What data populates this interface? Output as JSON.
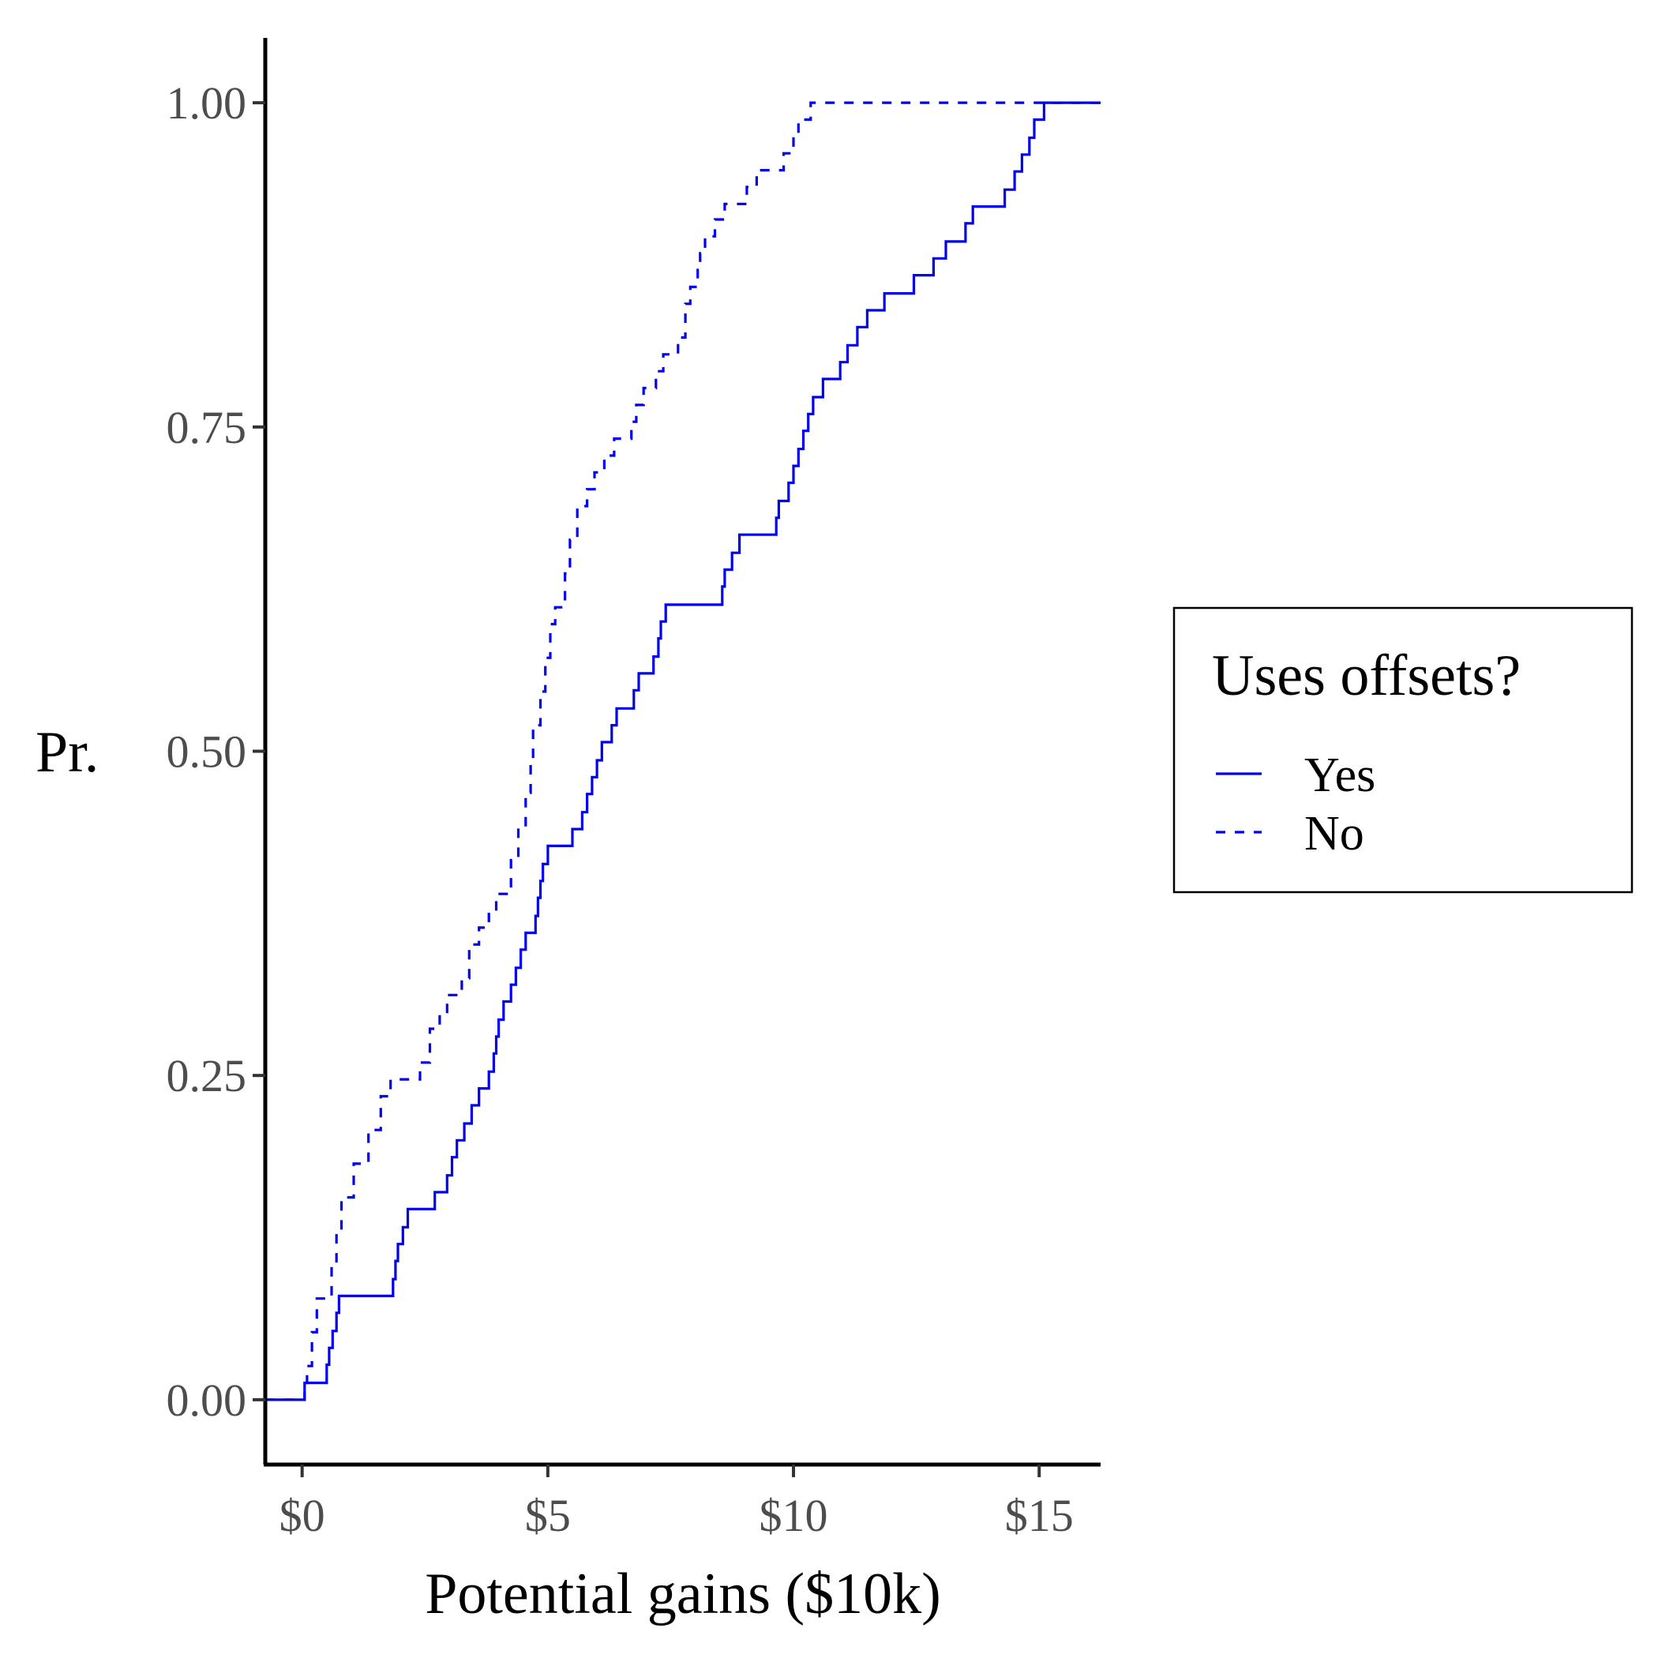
{
  "chart_data": {
    "type": "line",
    "step": true,
    "title": "",
    "xlabel": "Potential gains ($10k)",
    "ylabel": "Pr.",
    "xlim": [
      -0.75,
      16.25
    ],
    "ylim": [
      -0.05,
      1.05
    ],
    "x_ticks": [
      0,
      5,
      10,
      15
    ],
    "x_tick_labels": [
      "$0",
      "$5",
      "$10",
      "$15"
    ],
    "y_ticks": [
      0,
      0.25,
      0.5,
      0.75,
      1.0
    ],
    "y_tick_labels": [
      "0.00",
      "0.25",
      "0.50",
      "0.75",
      "1.00"
    ],
    "grid": false,
    "legend": {
      "title": "Uses offsets?",
      "position": "right"
    },
    "series": [
      {
        "name": "Yes",
        "line_style": "solid",
        "color": "#0000ee",
        "x": [
          -0.75,
          0.05,
          0.5,
          0.55,
          0.62,
          0.7,
          0.75,
          1.85,
          1.9,
          1.95,
          2.05,
          2.15,
          2.7,
          2.95,
          3.05,
          3.15,
          3.3,
          3.45,
          3.6,
          3.8,
          3.9,
          3.95,
          4.0,
          4.1,
          4.25,
          4.35,
          4.45,
          4.55,
          4.75,
          4.8,
          4.85,
          4.9,
          5.0,
          5.5,
          5.7,
          5.8,
          5.9,
          6.0,
          6.1,
          6.3,
          6.4,
          6.75,
          6.85,
          7.15,
          7.25,
          7.3,
          7.4,
          8.55,
          8.6,
          8.75,
          8.9,
          9.65,
          9.7,
          9.9,
          10.0,
          10.1,
          10.2,
          10.3,
          10.4,
          10.6,
          10.95,
          11.1,
          11.3,
          11.5,
          11.85,
          12.45,
          12.85,
          13.1,
          13.5,
          13.65,
          14.3,
          14.5,
          14.65,
          14.8,
          14.9,
          15.1,
          15.35,
          15.5,
          16.25
        ],
        "y": [
          0.0,
          0.013,
          0.027,
          0.04,
          0.053,
          0.067,
          0.08,
          0.093,
          0.107,
          0.12,
          0.133,
          0.147,
          0.16,
          0.173,
          0.187,
          0.2,
          0.213,
          0.227,
          0.24,
          0.253,
          0.267,
          0.28,
          0.293,
          0.307,
          0.32,
          0.333,
          0.347,
          0.36,
          0.373,
          0.387,
          0.4,
          0.413,
          0.427,
          0.44,
          0.453,
          0.467,
          0.48,
          0.493,
          0.507,
          0.52,
          0.533,
          0.547,
          0.56,
          0.573,
          0.587,
          0.6,
          0.613,
          0.627,
          0.64,
          0.653,
          0.667,
          0.68,
          0.693,
          0.707,
          0.72,
          0.733,
          0.747,
          0.76,
          0.773,
          0.787,
          0.8,
          0.813,
          0.827,
          0.84,
          0.853,
          0.867,
          0.88,
          0.893,
          0.907,
          0.92,
          0.933,
          0.947,
          0.96,
          0.973,
          0.987,
          1.0,
          1.0,
          1.0,
          1.0
        ]
      },
      {
        "name": "No",
        "line_style": "dashed",
        "color": "#0000ee",
        "x": [
          -0.75,
          0.05,
          0.1,
          0.2,
          0.3,
          0.6,
          0.7,
          0.8,
          1.05,
          1.35,
          1.6,
          1.8,
          2.4,
          2.6,
          2.8,
          2.95,
          3.25,
          3.4,
          3.6,
          3.8,
          3.95,
          4.25,
          4.4,
          4.55,
          4.65,
          4.7,
          4.85,
          4.95,
          5.05,
          5.15,
          5.35,
          5.45,
          5.6,
          5.8,
          5.95,
          6.15,
          6.35,
          6.7,
          6.8,
          6.95,
          7.2,
          7.35,
          7.65,
          7.8,
          7.9,
          8.05,
          8.1,
          8.2,
          8.4,
          8.6,
          9.05,
          9.25,
          9.8,
          10.0,
          10.1,
          10.35,
          10.75,
          11.15,
          11.55,
          11.75,
          12.1,
          12.6,
          13.35,
          13.75,
          14.25,
          14.8,
          15.1,
          15.4,
          16.25
        ],
        "y": [
          0.0,
          0.013,
          0.026,
          0.052,
          0.078,
          0.104,
          0.13,
          0.156,
          0.182,
          0.208,
          0.234,
          0.247,
          0.26,
          0.286,
          0.299,
          0.312,
          0.325,
          0.351,
          0.364,
          0.377,
          0.39,
          0.416,
          0.442,
          0.468,
          0.494,
          0.52,
          0.546,
          0.572,
          0.598,
          0.611,
          0.637,
          0.663,
          0.689,
          0.702,
          0.715,
          0.728,
          0.741,
          0.754,
          0.767,
          0.78,
          0.793,
          0.806,
          0.819,
          0.845,
          0.858,
          0.871,
          0.884,
          0.897,
          0.91,
          0.922,
          0.935,
          0.948,
          0.961,
          0.974,
          0.987,
          1.0,
          1.0,
          1.0,
          1.0,
          1.0,
          1.0,
          1.0,
          1.0,
          1.0,
          1.0,
          1.0,
          1.0,
          1.0,
          1.0
        ]
      }
    ]
  }
}
